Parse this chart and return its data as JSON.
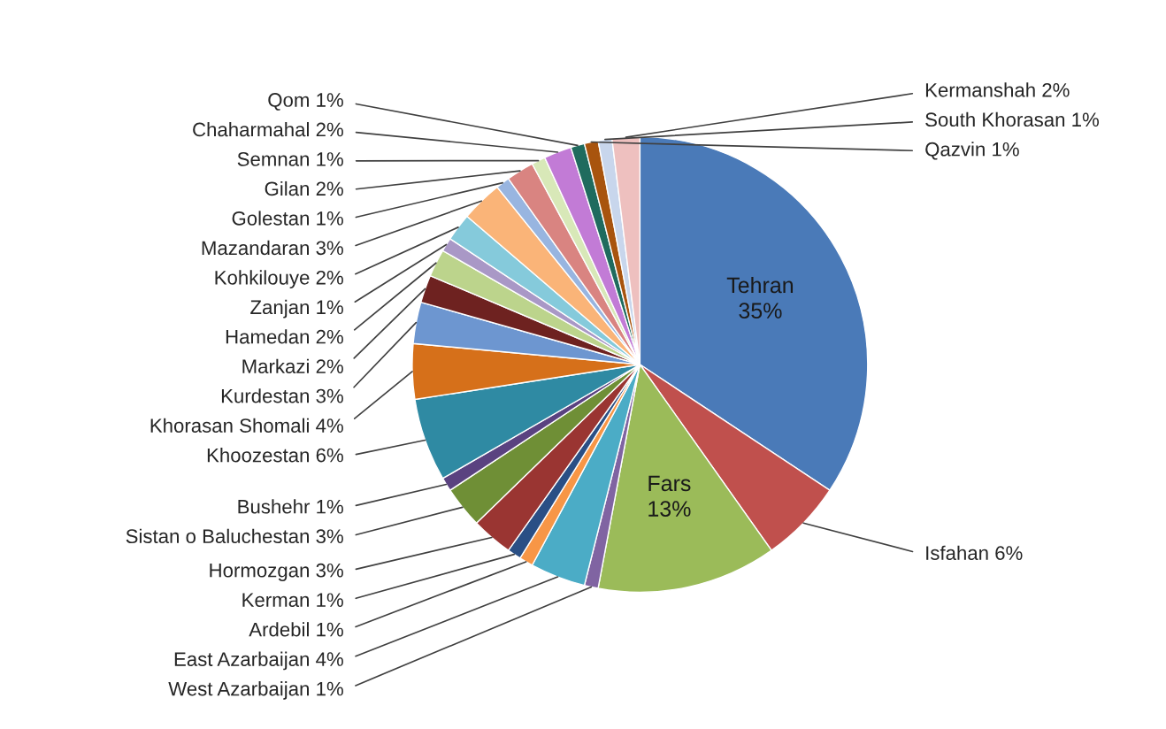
{
  "chart_data": {
    "type": "pie",
    "categories": [
      "Tehran",
      "Isfahan",
      "Fars",
      "West Azarbaijan",
      "East Azarbaijan",
      "Ardebil",
      "Kerman",
      "Hormozgan",
      "Sistan o Baluchestan",
      "Bushehr",
      "Khoozestan",
      "Khorasan Shomali",
      "Kurdestan",
      "Markazi",
      "Hamedan",
      "Zanjan",
      "Kohkilouye",
      "Mazandaran",
      "Golestan",
      "Gilan",
      "Semnan",
      "Chaharmahal",
      "Qom",
      "Qazvin",
      "South Khorasan",
      "Kermanshah"
    ],
    "values": [
      35,
      6,
      13,
      1,
      4,
      1,
      1,
      3,
      3,
      1,
      6,
      4,
      3,
      2,
      2,
      1,
      2,
      3,
      1,
      2,
      1,
      2,
      1,
      1,
      1,
      2
    ],
    "value_labels": [
      "35%",
      "6%",
      "13%",
      "1%",
      "4%",
      "1%",
      "1%",
      "3%",
      "3%",
      "1%",
      "6%",
      "4%",
      "3%",
      "2%",
      "2%",
      "1%",
      "2%",
      "3%",
      "1%",
      "2%",
      "1%",
      "2%",
      "1%",
      "1%",
      "1%",
      "2%"
    ],
    "colors": [
      "#4a7ab8",
      "#c0504d",
      "#9bbb59",
      "#8064a2",
      "#4bacc6",
      "#f79646",
      "#2a4f85",
      "#9a3532",
      "#6f8f36",
      "#5a4280",
      "#2f8aa3",
      "#d6701a",
      "#6d96d0",
      "#6e2220",
      "#bcd48c",
      "#a998c6",
      "#85cadb",
      "#fab478",
      "#98b5e0",
      "#d98481",
      "#d8e8b8",
      "#c27bd6",
      "#1f6b5e",
      "#a8540e",
      "#c8d6ec",
      "#eec0bf"
    ]
  }
}
